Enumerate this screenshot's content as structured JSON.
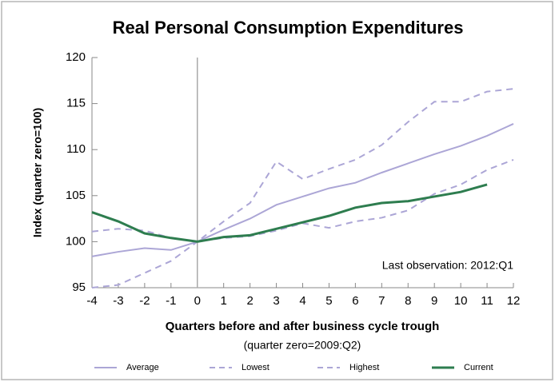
{
  "chart_data": {
    "type": "line",
    "title": "Real Personal Consumption Expenditures",
    "x_label": "Quarters before and after business cycle trough",
    "x_subtitle": "(quarter zero=2009:Q2)",
    "y_label": "Index (quarter zero=100)",
    "annotation": "Last observation: 2012:Q1",
    "x": [
      -4,
      -3,
      -2,
      -1,
      0,
      1,
      2,
      3,
      4,
      5,
      6,
      7,
      8,
      9,
      10,
      11,
      12
    ],
    "xlim": [
      -4,
      12
    ],
    "xticks": [
      -4,
      -3,
      -2,
      -1,
      0,
      1,
      2,
      3,
      4,
      5,
      6,
      7,
      8,
      9,
      10,
      11,
      12
    ],
    "ylim": [
      95,
      120
    ],
    "yticks": [
      95,
      100,
      105,
      110,
      115,
      120
    ],
    "vline": 0,
    "legend": "bottom",
    "series": [
      {
        "name": "Average",
        "color": "#aca6d6",
        "line_style": "solid",
        "values": [
          98.4,
          98.9,
          99.3,
          99.1,
          100,
          101.3,
          102.5,
          104.0,
          104.9,
          105.8,
          106.4,
          107.5,
          108.5,
          109.5,
          110.4,
          111.5,
          112.8
        ]
      },
      {
        "name": "Lowest",
        "color": "#aca6d6",
        "line_style": "dashed",
        "values": [
          95.0,
          95.3,
          96.6,
          97.9,
          100,
          100.4,
          100.6,
          101.2,
          102.0,
          101.5,
          102.2,
          102.6,
          103.4,
          105.2,
          106.2,
          107.8,
          108.9
        ]
      },
      {
        "name": "Highest",
        "color": "#aca6d6",
        "line_style": "dashed",
        "values": [
          101.1,
          101.4,
          101.2,
          100.4,
          100,
          102.2,
          104.2,
          108.7,
          106.8,
          107.9,
          108.9,
          110.5,
          113.0,
          115.2,
          115.2,
          116.3,
          116.6
        ]
      },
      {
        "name": "Current",
        "color": "#2e7d4f",
        "line_style": "solid",
        "values": [
          103.2,
          102.2,
          100.9,
          100.4,
          100,
          100.5,
          100.7,
          101.4,
          102.1,
          102.8,
          103.7,
          104.2,
          104.4,
          104.9,
          105.4,
          106.2,
          null
        ]
      }
    ]
  }
}
